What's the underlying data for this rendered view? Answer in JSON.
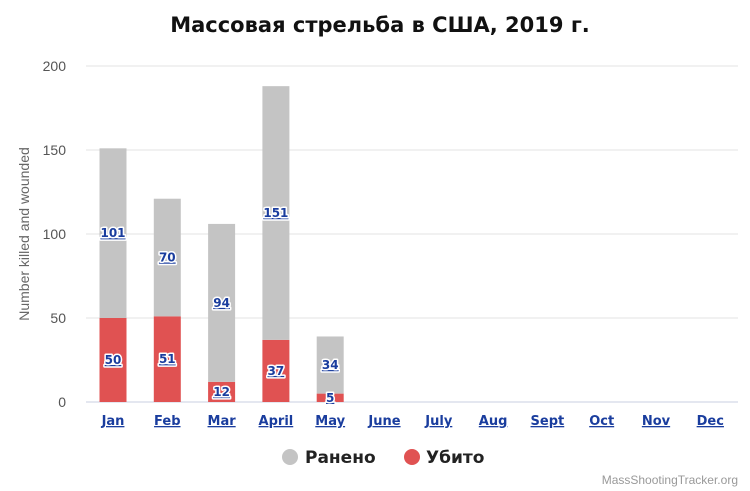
{
  "chart_data": {
    "type": "bar",
    "stacked": true,
    "title": "Массовая стрельба в США, 2019 г.",
    "ylabel": "Number killed and wounded",
    "xlabel": "",
    "ylim": [
      0,
      200
    ],
    "yticks": [
      "0",
      "50",
      "100",
      "150",
      "200"
    ],
    "grid": true,
    "legend_position": "bottom",
    "categories": [
      "Jan",
      "Feb",
      "Mar",
      "April",
      "May",
      "June",
      "July",
      "Aug",
      "Sept",
      "Oct",
      "Nov",
      "Dec"
    ],
    "series": [
      {
        "name": "Убито",
        "color": "#e05252",
        "values": [
          50,
          51,
          12,
          37,
          5,
          null,
          null,
          null,
          null,
          null,
          null,
          null
        ]
      },
      {
        "name": "Ранено",
        "color": "#c4c4c4",
        "values": [
          101,
          70,
          94,
          151,
          34,
          null,
          null,
          null,
          null,
          null,
          null,
          null
        ]
      }
    ]
  },
  "legend": {
    "items": [
      {
        "label": "Ранено",
        "color": "#c4c4c4"
      },
      {
        "label": "Убито",
        "color": "#e05252"
      }
    ]
  },
  "credit": "MassShootingTracker.org"
}
